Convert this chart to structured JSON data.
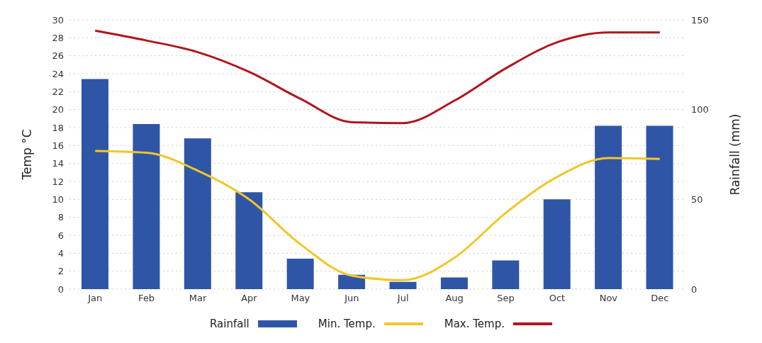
{
  "chart_data": {
    "type": "bar",
    "ylabel": "Temp °C",
    "y2label": "Rainfall (mm)",
    "categories": [
      "Jan",
      "Feb",
      "Mar",
      "Apr",
      "May",
      "Jun",
      "Jul",
      "Aug",
      "Sep",
      "Oct",
      "Nov",
      "Dec"
    ],
    "series": [
      {
        "name": "Rainfall",
        "axis": "y2",
        "color": "#2f56a6",
        "values": [
          117,
          92,
          84,
          54,
          17,
          8,
          4,
          6.5,
          16,
          50,
          91,
          91
        ]
      },
      {
        "name": "Min. Temp.",
        "type": "line",
        "color": "#f2c627",
        "values": [
          15.4,
          15.2,
          13.2,
          10,
          5,
          1.5,
          1,
          3.5,
          8.5,
          12.5,
          14.6,
          14.5
        ]
      },
      {
        "name": "Max. Temp.",
        "type": "line",
        "color": "#b0151d",
        "values": [
          28.8,
          27.7,
          26.4,
          24.2,
          21.2,
          18.6,
          18.5,
          21,
          24.6,
          27.5,
          28.6,
          28.6
        ]
      }
    ],
    "ylim": [
      0,
      30
    ],
    "yticks": [
      0,
      2,
      4,
      6,
      8,
      10,
      12,
      14,
      16,
      18,
      20,
      22,
      24,
      26,
      28,
      30
    ],
    "y2lim": [
      0,
      150
    ],
    "y2ticks": [
      0,
      50,
      100,
      150
    ],
    "grid": "y",
    "legend": "bottom",
    "marker": "none",
    "line_style": "solid"
  }
}
